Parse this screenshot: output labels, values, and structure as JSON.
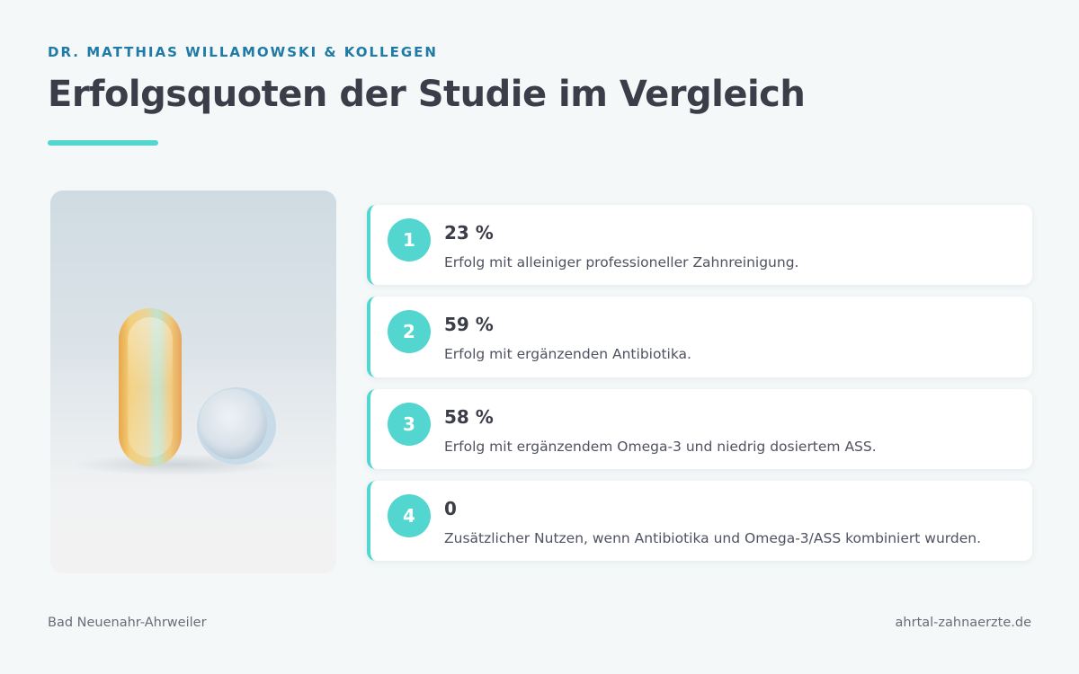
{
  "header": {
    "eyebrow": "DR. MATTHIAS WILLAMOWSKI & KOLLEGEN",
    "title": "Erfolgsquoten der Studie im Vergleich"
  },
  "image": {
    "icon": "capsule-and-tablet-photo"
  },
  "items": [
    {
      "number": "1",
      "value": "23 %",
      "description": "Erfolg mit alleiniger professioneller Zahnreinigung."
    },
    {
      "number": "2",
      "value": "59 %",
      "description": "Erfolg mit ergänzenden Antibiotika."
    },
    {
      "number": "3",
      "value": "58 %",
      "description": "Erfolg mit ergänzendem Omega-3 und niedrig dosiertem ASS."
    },
    {
      "number": "4",
      "value": "0",
      "description": "Zusätzlicher Nutzen, wenn Antibiotika und Omega-3/ASS kombiniert wurden."
    }
  ],
  "footer": {
    "location": "Bad Neuenahr-Ahrweiler",
    "website": "ahrtal-zahnaerzte.de"
  },
  "colors": {
    "accent": "#52d6cf",
    "eyebrow": "#1e7aa6",
    "background": "#f4f8f9"
  }
}
